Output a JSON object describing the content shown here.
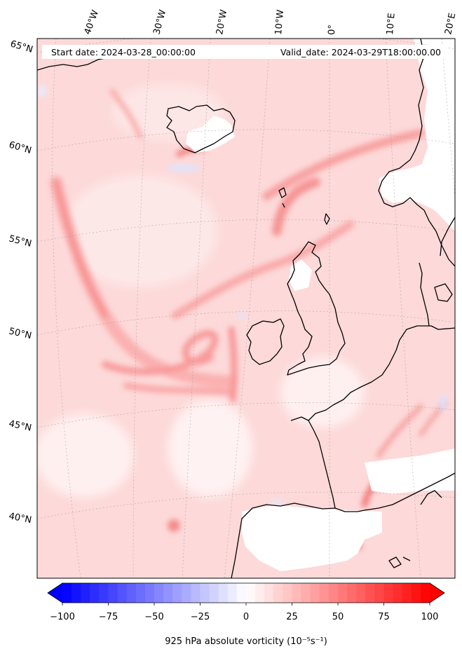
{
  "header": {
    "start_date": "Start date: 2024-03-28_00:00:00",
    "valid_date": "Valid_date: 2024-03-29T18:00:00.00"
  },
  "map": {
    "projection": "conic",
    "longitude_labels": [
      "40°W",
      "30°W",
      "20°W",
      "10°W",
      "0°",
      "10°E",
      "20°E"
    ],
    "latitude_labels": [
      "65°N",
      "60°N",
      "55°N",
      "50°N",
      "45°N",
      "40°N"
    ],
    "field": "925 hPa absolute vorticity",
    "colormap": "bwr",
    "coastline_color": "#000000",
    "gridline_color": "#9a9a9a"
  },
  "colorbar": {
    "label": "925 hPa absolute vorticity (10⁻⁵s⁻¹)",
    "min": -100,
    "max": 100,
    "tick_values": [
      -100,
      -75,
      -50,
      -25,
      0,
      25,
      50,
      75,
      100
    ],
    "tick_labels": [
      "−100",
      "−75",
      "−50",
      "−25",
      "0",
      "25",
      "50",
      "75",
      "100"
    ],
    "levels": 40,
    "extend": "both",
    "min_color": "#0000ff",
    "mid_color": "#ffffff",
    "max_color": "#ff0000"
  }
}
